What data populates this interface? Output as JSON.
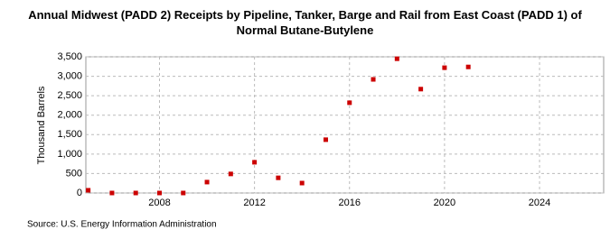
{
  "chart_data": {
    "type": "scatter",
    "title": "Annual Midwest (PADD 2) Receipts by Pipeline, Tanker, Barge and Rail from East Coast (PADD 1) of Normal Butane-Butylene",
    "y_label": "Thousand Barrels",
    "source": "Source: U.S. Energy Information Administration",
    "series": [
      {
        "name": "Receipts",
        "color": "#cc0000",
        "x": [
          2005,
          2006,
          2007,
          2008,
          2009,
          2010,
          2011,
          2012,
          2013,
          2014,
          2015,
          2016,
          2017,
          2018,
          2019,
          2020,
          2021
        ],
        "values": [
          70,
          0,
          0,
          0,
          0,
          280,
          490,
          790,
          390,
          255,
          1370,
          2320,
          2920,
          3450,
          2670,
          3220,
          3240
        ]
      }
    ],
    "xlim": [
      2004.9,
      2026.7
    ],
    "xticks": [
      2008,
      2012,
      2016,
      2020,
      2024
    ],
    "ylim": [
      0,
      3500
    ],
    "yticks": [
      0,
      500,
      {
        "value": 1000,
        "label": "1,000"
      },
      {
        "value": 1500,
        "label": "1,500"
      },
      {
        "value": 2000,
        "label": "2,000"
      },
      {
        "value": 2500,
        "label": "2,500"
      },
      {
        "value": 3000,
        "label": "3,000"
      },
      {
        "value": 3500,
        "label": "3,500"
      }
    ],
    "grid": true
  }
}
